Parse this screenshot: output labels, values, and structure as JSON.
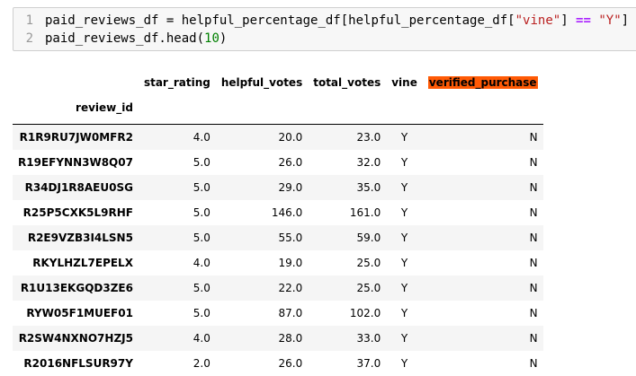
{
  "code_cell": {
    "line_numbers": [
      "1",
      "2"
    ],
    "line1": {
      "v1": "paid_reviews_df",
      "eq": " = ",
      "v2": "helpful_percentage_df[helpful_percentage_df[",
      "s1": "\"vine\"",
      "p1": "] ",
      "op": "==",
      "p2": " ",
      "s2": "\"Y\"",
      "p3": "]"
    },
    "line2": {
      "call": "paid_reviews_df.head(",
      "num": "10",
      "close": ")"
    }
  },
  "dataframe": {
    "columns": [
      "star_rating",
      "helpful_votes",
      "total_votes",
      "vine",
      "verified_purchase"
    ],
    "index_name": "review_id",
    "highlight": {
      "column": "verified_purchase",
      "color": "#ff5a05"
    },
    "rows": [
      {
        "id": "R1R9RU7JW0MFR2",
        "star_rating": "4.0",
        "helpful_votes": "20.0",
        "total_votes": "23.0",
        "vine": "Y",
        "verified_purchase": "N"
      },
      {
        "id": "R19EFYNN3W8Q07",
        "star_rating": "5.0",
        "helpful_votes": "26.0",
        "total_votes": "32.0",
        "vine": "Y",
        "verified_purchase": "N"
      },
      {
        "id": "R34DJ1R8AEU0SG",
        "star_rating": "5.0",
        "helpful_votes": "29.0",
        "total_votes": "35.0",
        "vine": "Y",
        "verified_purchase": "N"
      },
      {
        "id": "R25P5CXK5L9RHF",
        "star_rating": "5.0",
        "helpful_votes": "146.0",
        "total_votes": "161.0",
        "vine": "Y",
        "verified_purchase": "N"
      },
      {
        "id": "R2E9VZB3I4LSN5",
        "star_rating": "5.0",
        "helpful_votes": "55.0",
        "total_votes": "59.0",
        "vine": "Y",
        "verified_purchase": "N"
      },
      {
        "id": "RKYLHZL7EPELX",
        "star_rating": "4.0",
        "helpful_votes": "19.0",
        "total_votes": "25.0",
        "vine": "Y",
        "verified_purchase": "N"
      },
      {
        "id": "R1U13EKGQD3ZE6",
        "star_rating": "5.0",
        "helpful_votes": "22.0",
        "total_votes": "25.0",
        "vine": "Y",
        "verified_purchase": "N"
      },
      {
        "id": "RYW05F1MUEF01",
        "star_rating": "5.0",
        "helpful_votes": "87.0",
        "total_votes": "102.0",
        "vine": "Y",
        "verified_purchase": "N"
      },
      {
        "id": "R2SW4NXNO7HZJ5",
        "star_rating": "4.0",
        "helpful_votes": "28.0",
        "total_votes": "33.0",
        "vine": "Y",
        "verified_purchase": "N"
      },
      {
        "id": "R2016NFLSUR97Y",
        "star_rating": "2.0",
        "helpful_votes": "26.0",
        "total_votes": "37.0",
        "vine": "Y",
        "verified_purchase": "N"
      }
    ]
  }
}
